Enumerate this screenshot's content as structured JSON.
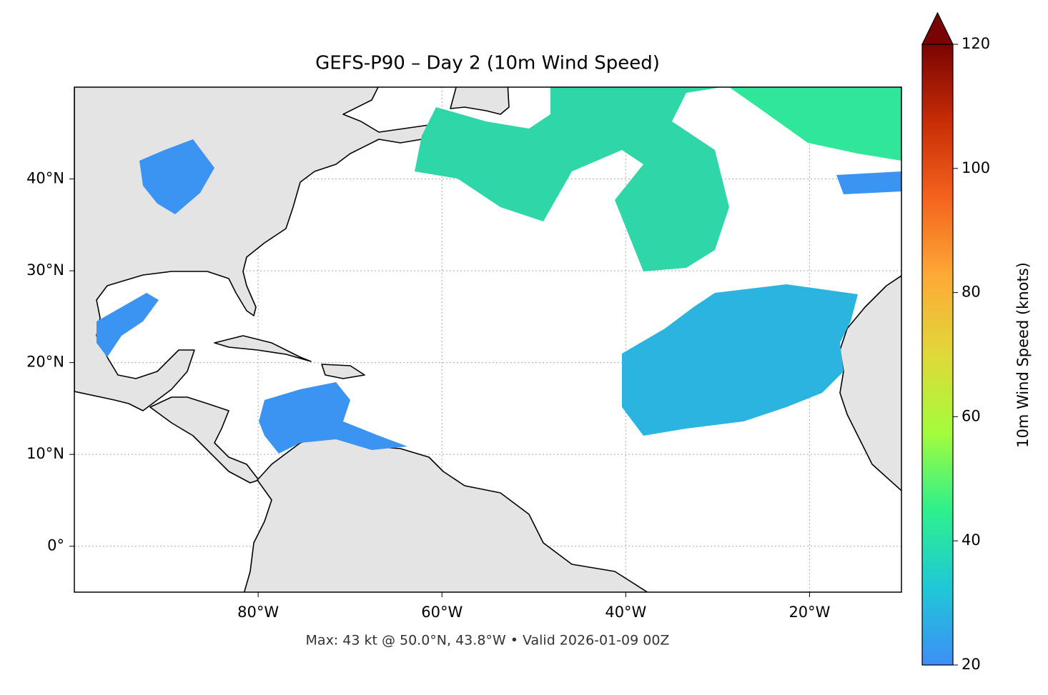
{
  "chart_data": {
    "type": "map",
    "title": "GEFS-P90 – Day 2 (10m Wind Speed)",
    "footnote": "Max: 43 kt @ 50.0°N, 43.8°W • Valid 2026-01-09 00Z",
    "xlim": [
      -100,
      -10
    ],
    "ylim": [
      -5,
      50
    ],
    "xticks": [
      {
        "value": -80,
        "label": "80°W"
      },
      {
        "value": -60,
        "label": "60°W"
      },
      {
        "value": -40,
        "label": "40°W"
      },
      {
        "value": -20,
        "label": "20°W"
      }
    ],
    "yticks": [
      {
        "value": 0,
        "label": "0°"
      },
      {
        "value": 10,
        "label": "10°N"
      },
      {
        "value": 20,
        "label": "20°N"
      },
      {
        "value": 30,
        "label": "30°N"
      },
      {
        "value": 40,
        "label": "40°N"
      }
    ],
    "grid": true,
    "colorbar": {
      "label": "10m Wind Speed (knots)",
      "lim": [
        20,
        120
      ],
      "ticks": [
        20,
        40,
        60,
        80,
        100,
        120
      ],
      "colors": [
        "#3e8ef7",
        "#1fc8d6",
        "#2ef08c",
        "#a4fc3c",
        "#e0d83a",
        "#fdaa36",
        "#f5641e",
        "#c82d06",
        "#7a0403"
      ]
    }
  }
}
